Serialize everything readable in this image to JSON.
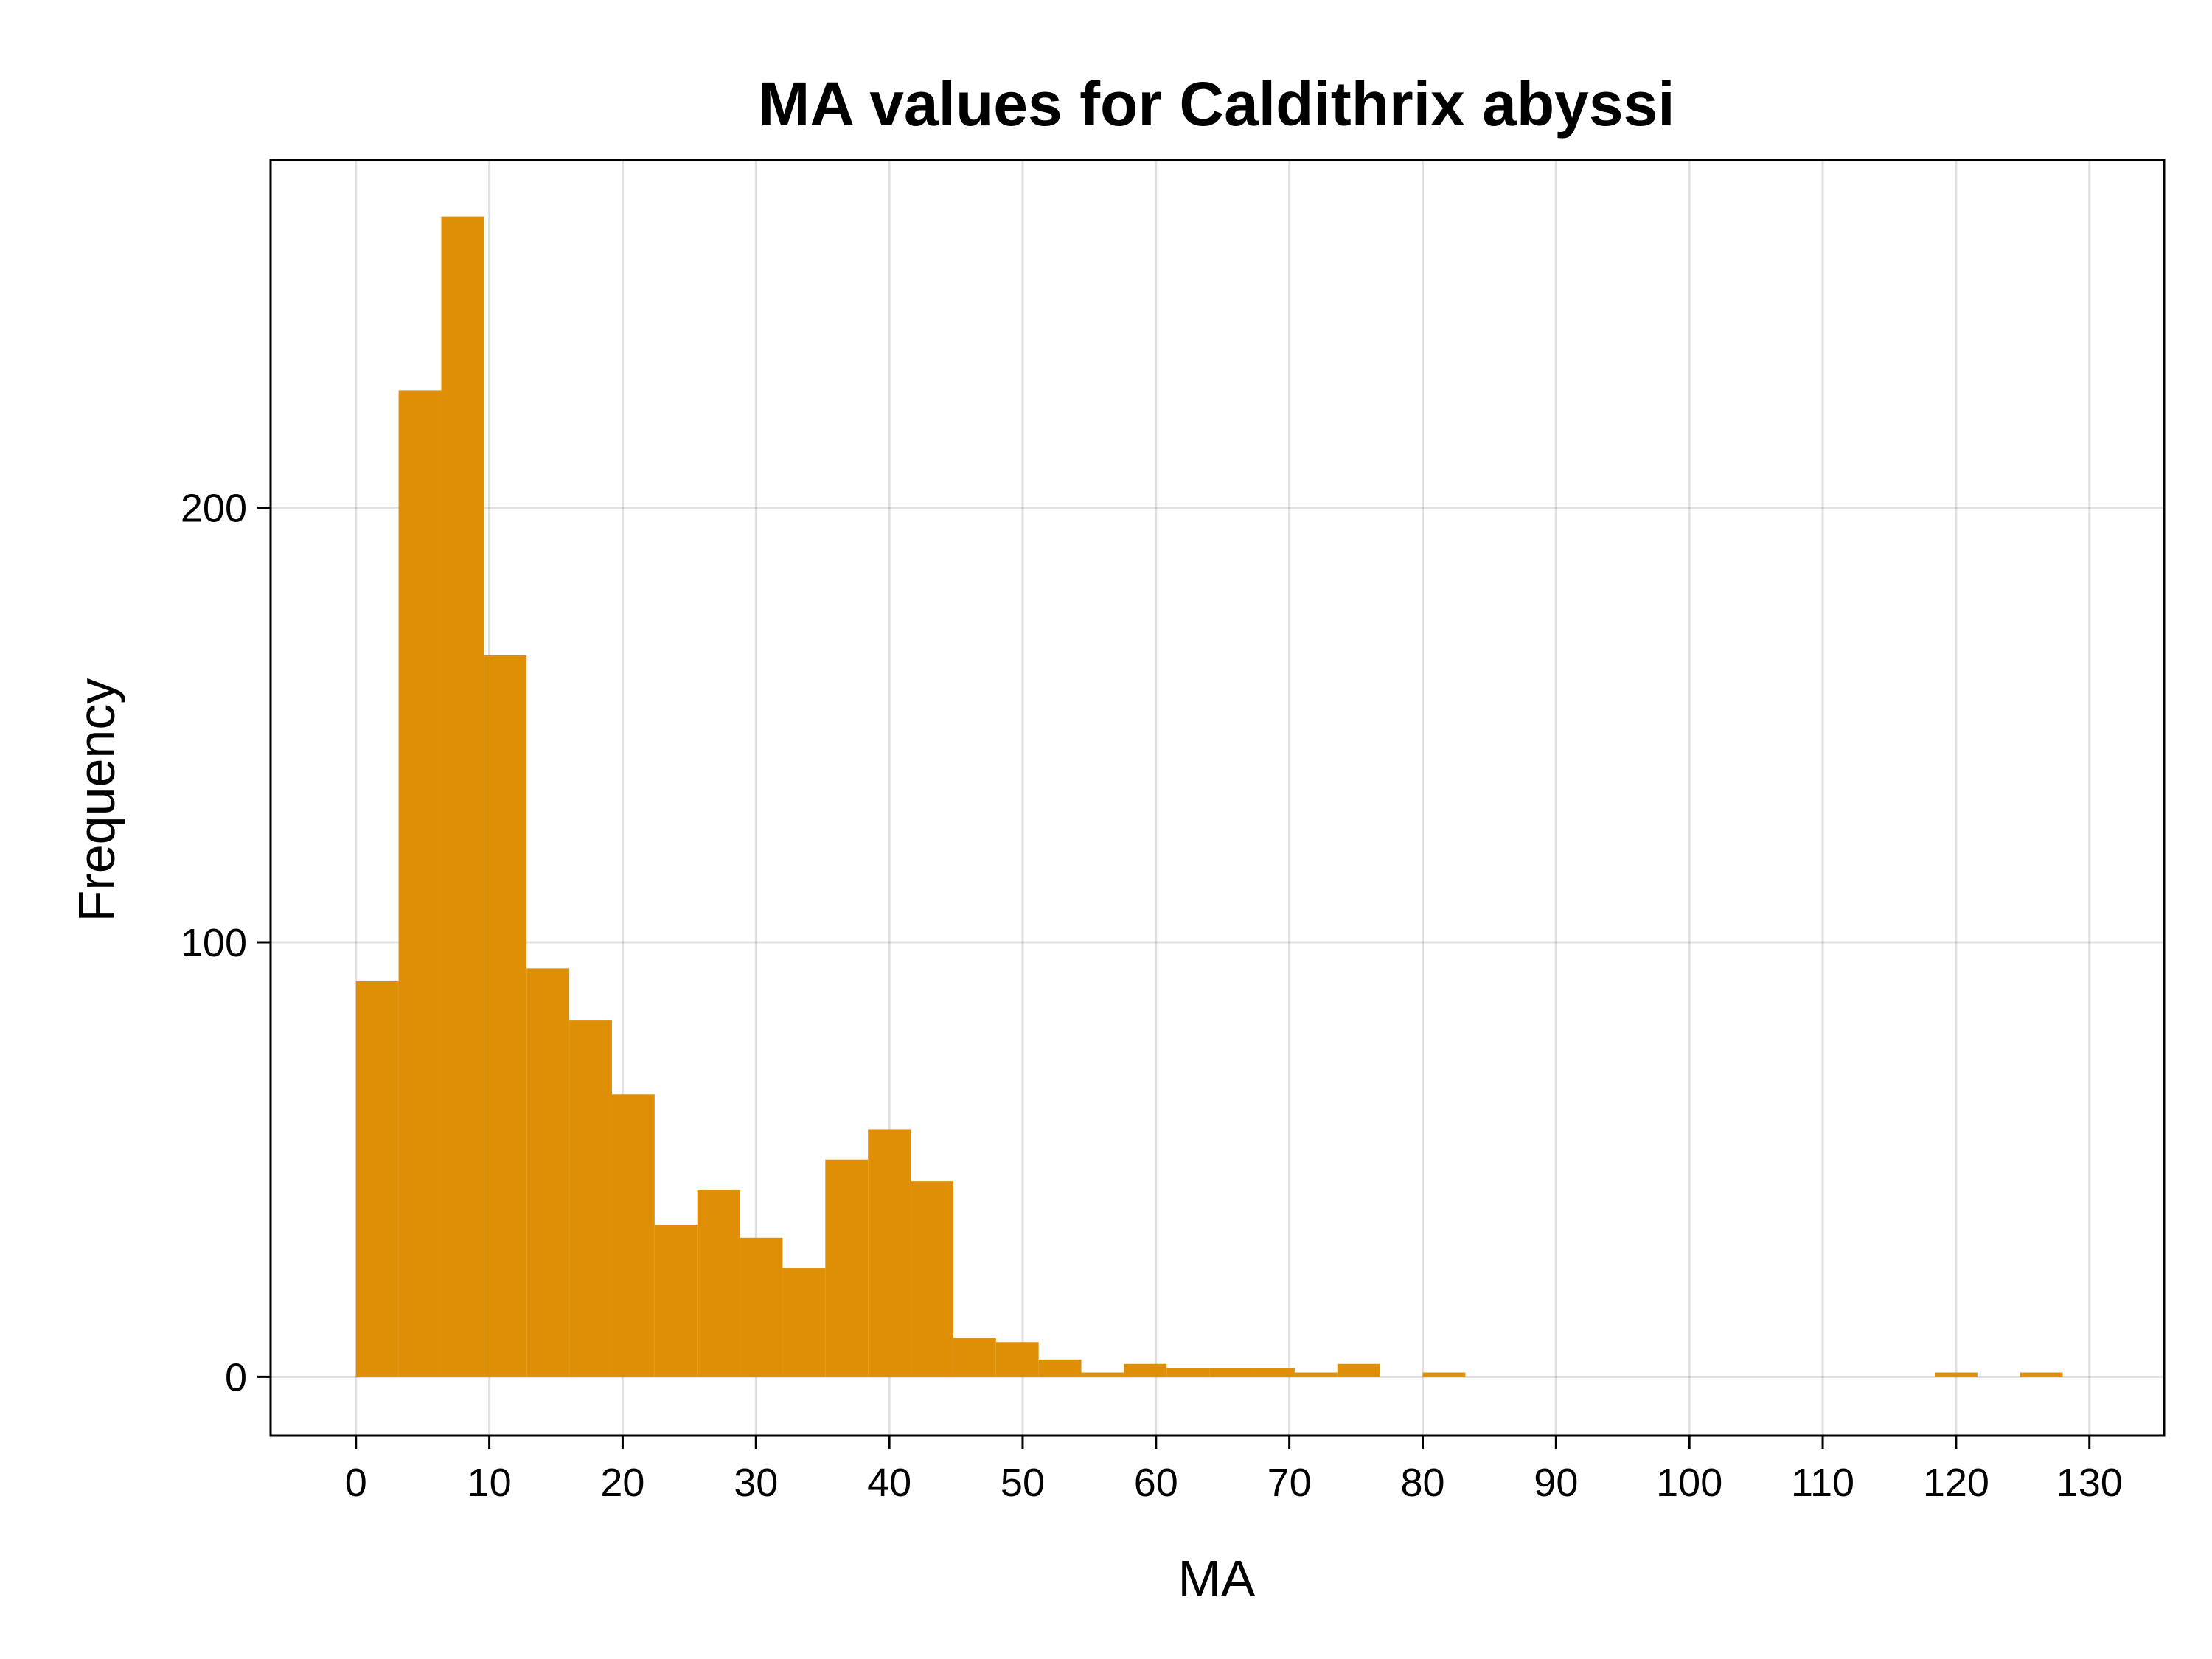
{
  "chart_data": {
    "type": "bar",
    "title": "MA values for Caldithrix abyssi",
    "xlabel": "MA",
    "ylabel": "Frequency",
    "bar_color": "#de8f05",
    "grid": true,
    "xlim": [
      -6.4,
      135.6
    ],
    "ylim": [
      -13.5,
      280
    ],
    "xticks": [
      0,
      10,
      20,
      30,
      40,
      50,
      60,
      70,
      80,
      90,
      100,
      110,
      120,
      130
    ],
    "yticks": [
      0,
      100,
      200
    ],
    "bin_width": 3.2,
    "bins": [
      {
        "x0": 0.0,
        "value": 91
      },
      {
        "x0": 3.2,
        "value": 227
      },
      {
        "x0": 6.4,
        "value": 267
      },
      {
        "x0": 9.6,
        "value": 166
      },
      {
        "x0": 12.8,
        "value": 94
      },
      {
        "x0": 16.0,
        "value": 82
      },
      {
        "x0": 19.2,
        "value": 65
      },
      {
        "x0": 22.4,
        "value": 35
      },
      {
        "x0": 25.6,
        "value": 43
      },
      {
        "x0": 28.8,
        "value": 32
      },
      {
        "x0": 32.0,
        "value": 25
      },
      {
        "x0": 35.2,
        "value": 50
      },
      {
        "x0": 38.4,
        "value": 57
      },
      {
        "x0": 41.6,
        "value": 45
      },
      {
        "x0": 44.8,
        "value": 9
      },
      {
        "x0": 48.0,
        "value": 8
      },
      {
        "x0": 51.2,
        "value": 4
      },
      {
        "x0": 54.4,
        "value": 1
      },
      {
        "x0": 57.6,
        "value": 3
      },
      {
        "x0": 60.8,
        "value": 2
      },
      {
        "x0": 64.0,
        "value": 2
      },
      {
        "x0": 67.2,
        "value": 2
      },
      {
        "x0": 70.4,
        "value": 1
      },
      {
        "x0": 73.6,
        "value": 3
      },
      {
        "x0": 76.8,
        "value": 0
      },
      {
        "x0": 80.0,
        "value": 1
      },
      {
        "x0": 83.2,
        "value": 0
      },
      {
        "x0": 86.4,
        "value": 0
      },
      {
        "x0": 89.6,
        "value": 0
      },
      {
        "x0": 92.8,
        "value": 0
      },
      {
        "x0": 96.0,
        "value": 0
      },
      {
        "x0": 99.2,
        "value": 0
      },
      {
        "x0": 102.4,
        "value": 0
      },
      {
        "x0": 105.6,
        "value": 0
      },
      {
        "x0": 108.8,
        "value": 0
      },
      {
        "x0": 112.0,
        "value": 0
      },
      {
        "x0": 115.2,
        "value": 0
      },
      {
        "x0": 118.4,
        "value": 1
      },
      {
        "x0": 121.6,
        "value": 0
      },
      {
        "x0": 124.8,
        "value": 1
      }
    ]
  }
}
